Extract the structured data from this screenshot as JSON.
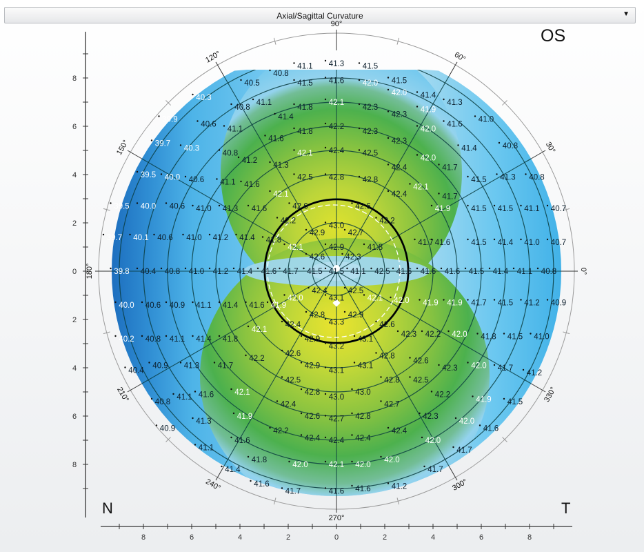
{
  "dropdown": {
    "selected": "Axial/Sagittal Curvature",
    "arrow": "▼"
  },
  "eye_label": "OS",
  "side_labels": {
    "left": "N",
    "right": "T"
  },
  "chart_data": {
    "type": "heatmap",
    "subtype": "polar corneal topography map",
    "title": "Axial/Sagittal Curvature",
    "eye": "OS",
    "units": "diopters (D)",
    "xlabel": "mm",
    "ylabel": "mm",
    "xlim": [
      -9.5,
      9.5
    ],
    "ylim": [
      -9.5,
      9.5
    ],
    "x_ticks": [
      8,
      6,
      4,
      2,
      0,
      2,
      4,
      6,
      8
    ],
    "y_ticks": [
      8,
      6,
      4,
      2,
      0,
      2,
      4,
      6,
      8
    ],
    "angle_labels": [
      "0°",
      "30°",
      "60°",
      "90°",
      "120°",
      "150°",
      "180°",
      "210°",
      "240°",
      "270°",
      "300°",
      "330°"
    ],
    "ring_radii_mm": [
      1,
      2,
      3,
      4,
      5,
      6,
      7,
      8,
      9
    ],
    "reference_circle_mm": 3,
    "color_scale": [
      {
        "value": 39.5,
        "color": "#1f72bf"
      },
      {
        "value": 40.3,
        "color": "#3fa4e0"
      },
      {
        "value": 41.0,
        "color": "#5cc0ec"
      },
      {
        "value": 41.5,
        "color": "#93d3ee"
      },
      {
        "value": 41.8,
        "color": "#6fbe9a"
      },
      {
        "value": 42.1,
        "color": "#45b04a"
      },
      {
        "value": 42.5,
        "color": "#8cc43c"
      },
      {
        "value": 43.0,
        "color": "#c9da2e"
      },
      {
        "value": 43.3,
        "color": "#e8e628"
      }
    ],
    "points": [
      {
        "x": -1.3,
        "y": 8.5,
        "v": 41.1
      },
      {
        "x": 0.0,
        "y": 8.6,
        "v": 41.3
      },
      {
        "x": 1.4,
        "y": 8.5,
        "v": 41.5
      },
      {
        "x": -2.3,
        "y": 8.2,
        "v": 40.8
      },
      {
        "x": 2.6,
        "y": 7.9,
        "v": 41.5
      },
      {
        "x": 3.8,
        "y": 7.3,
        "v": 41.4
      },
      {
        "x": -3.5,
        "y": 7.8,
        "v": 40.5
      },
      {
        "x": -1.3,
        "y": 7.8,
        "v": 41.5
      },
      {
        "x": 0.0,
        "y": 7.9,
        "v": 41.6
      },
      {
        "x": 1.4,
        "y": 7.8,
        "v": 42.0
      },
      {
        "x": -5.5,
        "y": 7.2,
        "v": 40.3
      },
      {
        "x": -3.0,
        "y": 7.0,
        "v": 41.1
      },
      {
        "x": 2.6,
        "y": 7.4,
        "v": 42.0
      },
      {
        "x": 4.9,
        "y": 7.0,
        "v": 41.3
      },
      {
        "x": -3.9,
        "y": 6.8,
        "v": 40.8
      },
      {
        "x": -1.3,
        "y": 6.8,
        "v": 41.8
      },
      {
        "x": 0.0,
        "y": 7.0,
        "v": 42.1
      },
      {
        "x": 1.4,
        "y": 6.8,
        "v": 42.3
      },
      {
        "x": 3.8,
        "y": 6.7,
        "v": 41.9
      },
      {
        "x": -6.9,
        "y": 6.3,
        "v": 39.9
      },
      {
        "x": -5.3,
        "y": 6.1,
        "v": 40.6
      },
      {
        "x": -2.1,
        "y": 6.4,
        "v": 41.4
      },
      {
        "x": 2.6,
        "y": 6.5,
        "v": 42.3
      },
      {
        "x": 4.9,
        "y": 6.1,
        "v": 41.6
      },
      {
        "x": 6.2,
        "y": 6.3,
        "v": 41.0
      },
      {
        "x": -4.2,
        "y": 5.9,
        "v": 41.1
      },
      {
        "x": -1.3,
        "y": 5.8,
        "v": 41.8
      },
      {
        "x": 0.0,
        "y": 6.0,
        "v": 42.2
      },
      {
        "x": 1.4,
        "y": 5.8,
        "v": 42.3
      },
      {
        "x": 3.8,
        "y": 5.9,
        "v": 42.0
      },
      {
        "x": -7.2,
        "y": 5.3,
        "v": 39.7
      },
      {
        "x": -6.0,
        "y": 5.1,
        "v": 40.3
      },
      {
        "x": -2.5,
        "y": 5.5,
        "v": 41.6
      },
      {
        "x": 2.6,
        "y": 5.4,
        "v": 42.3
      },
      {
        "x": 5.5,
        "y": 5.1,
        "v": 41.4
      },
      {
        "x": 7.2,
        "y": 5.2,
        "v": 40.8
      },
      {
        "x": -4.4,
        "y": 4.9,
        "v": 40.8
      },
      {
        "x": -1.3,
        "y": 4.9,
        "v": 42.1
      },
      {
        "x": 0.0,
        "y": 5.0,
        "v": 42.4
      },
      {
        "x": 1.4,
        "y": 4.9,
        "v": 42.5
      },
      {
        "x": 3.8,
        "y": 4.7,
        "v": 42.0
      },
      {
        "x": 4.7,
        "y": 4.3,
        "v": 41.7
      },
      {
        "x": -3.6,
        "y": 4.6,
        "v": 41.2
      },
      {
        "x": -2.3,
        "y": 4.4,
        "v": 41.3
      },
      {
        "x": 2.6,
        "y": 4.3,
        "v": 42.4
      },
      {
        "x": -7.8,
        "y": 4.0,
        "v": 39.5
      },
      {
        "x": -6.8,
        "y": 3.9,
        "v": 40.0
      },
      {
        "x": -5.8,
        "y": 3.8,
        "v": 40.6
      },
      {
        "x": -4.5,
        "y": 3.7,
        "v": 41.1
      },
      {
        "x": -3.5,
        "y": 3.6,
        "v": 41.6
      },
      {
        "x": -1.3,
        "y": 3.9,
        "v": 42.5
      },
      {
        "x": 0.0,
        "y": 3.9,
        "v": 42.8
      },
      {
        "x": 1.4,
        "y": 3.8,
        "v": 42.8
      },
      {
        "x": 5.9,
        "y": 3.8,
        "v": 41.5
      },
      {
        "x": 7.1,
        "y": 3.9,
        "v": 41.3
      },
      {
        "x": 8.3,
        "y": 3.9,
        "v": 40.8
      },
      {
        "x": -2.3,
        "y": 3.2,
        "v": 42.1
      },
      {
        "x": 3.5,
        "y": 3.5,
        "v": 42.1
      },
      {
        "x": 2.6,
        "y": 3.2,
        "v": 42.4
      },
      {
        "x": 4.7,
        "y": 3.1,
        "v": 41.7
      },
      {
        "x": -8.9,
        "y": 2.7,
        "v": 39.5
      },
      {
        "x": -7.8,
        "y": 2.7,
        "v": 40.0
      },
      {
        "x": -6.6,
        "y": 2.7,
        "v": 40.6
      },
      {
        "x": -5.5,
        "y": 2.6,
        "v": 41.0
      },
      {
        "x": -4.4,
        "y": 2.6,
        "v": 41.3
      },
      {
        "x": -3.2,
        "y": 2.6,
        "v": 41.6
      },
      {
        "x": -1.5,
        "y": 2.7,
        "v": 42.6
      },
      {
        "x": 1.1,
        "y": 2.7,
        "v": 42.6
      },
      {
        "x": 4.4,
        "y": 2.6,
        "v": 41.9
      },
      {
        "x": 5.9,
        "y": 2.6,
        "v": 41.5
      },
      {
        "x": 7.0,
        "y": 2.6,
        "v": 41.5
      },
      {
        "x": 8.1,
        "y": 2.6,
        "v": 41.1
      },
      {
        "x": 9.2,
        "y": 2.6,
        "v": 40.7
      },
      {
        "x": -2.0,
        "y": 2.1,
        "v": 42.2
      },
      {
        "x": 2.1,
        "y": 2.1,
        "v": 42.2
      },
      {
        "x": 0.0,
        "y": 1.9,
        "v": 43.0
      },
      {
        "x": -0.8,
        "y": 1.6,
        "v": 42.9
      },
      {
        "x": 0.8,
        "y": 1.6,
        "v": 42.7
      },
      {
        "x": -9.2,
        "y": 1.4,
        "v": 39.7
      },
      {
        "x": -8.1,
        "y": 1.4,
        "v": 40.1
      },
      {
        "x": -7.1,
        "y": 1.4,
        "v": 40.6
      },
      {
        "x": -5.9,
        "y": 1.4,
        "v": 41.0
      },
      {
        "x": -4.8,
        "y": 1.4,
        "v": 41.2
      },
      {
        "x": -3.7,
        "y": 1.4,
        "v": 41.4
      },
      {
        "x": -2.6,
        "y": 1.3,
        "v": 41.8
      },
      {
        "x": -1.7,
        "y": 1.0,
        "v": 42.1
      },
      {
        "x": 0.0,
        "y": 1.0,
        "v": 42.9
      },
      {
        "x": 1.6,
        "y": 1.0,
        "v": 41.8
      },
      {
        "x": 3.7,
        "y": 1.2,
        "v": 41.7
      },
      {
        "x": 4.4,
        "y": 1.2,
        "v": 41.6
      },
      {
        "x": 5.9,
        "y": 1.2,
        "v": 41.5
      },
      {
        "x": 7.0,
        "y": 1.2,
        "v": 41.4
      },
      {
        "x": 8.1,
        "y": 1.2,
        "v": 41.0
      },
      {
        "x": 9.2,
        "y": 1.2,
        "v": 40.7
      },
      {
        "x": -0.8,
        "y": 0.6,
        "v": 42.6
      },
      {
        "x": 0.7,
        "y": 0.6,
        "v": 42.3
      },
      {
        "x": -8.9,
        "y": 0.0,
        "v": 39.8
      },
      {
        "x": -7.8,
        "y": 0.0,
        "v": 40.4
      },
      {
        "x": -6.8,
        "y": 0.0,
        "v": 40.8
      },
      {
        "x": -5.8,
        "y": 0.0,
        "v": 41.0
      },
      {
        "x": -4.8,
        "y": 0.0,
        "v": 41.2
      },
      {
        "x": -3.8,
        "y": 0.0,
        "v": 41.4
      },
      {
        "x": -2.8,
        "y": 0.0,
        "v": 41.6
      },
      {
        "x": -1.9,
        "y": 0.0,
        "v": 41.7
      },
      {
        "x": -0.9,
        "y": 0.0,
        "v": 41.5
      },
      {
        "x": 0.0,
        "y": 0.0,
        "v": 41.5
      },
      {
        "x": 0.9,
        "y": 0.0,
        "v": 41.1
      },
      {
        "x": 1.9,
        "y": 0.0,
        "v": 42.5
      },
      {
        "x": 2.8,
        "y": 0.0,
        "v": 41.6
      },
      {
        "x": 3.8,
        "y": 0.0,
        "v": 41.6
      },
      {
        "x": 4.8,
        "y": 0.0,
        "v": 41.6
      },
      {
        "x": 5.8,
        "y": 0.0,
        "v": 41.5
      },
      {
        "x": 6.8,
        "y": 0.0,
        "v": 41.4
      },
      {
        "x": 7.8,
        "y": 0.0,
        "v": 41.1
      },
      {
        "x": 8.8,
        "y": 0.0,
        "v": 40.8
      },
      {
        "x": -0.7,
        "y": -0.8,
        "v": 42.4
      },
      {
        "x": 0.8,
        "y": -0.8,
        "v": 42.5
      },
      {
        "x": 0.0,
        "y": -1.1,
        "v": 43.1
      },
      {
        "x": -8.7,
        "y": -1.4,
        "v": 40.0
      },
      {
        "x": -7.6,
        "y": -1.4,
        "v": 40.6
      },
      {
        "x": -6.6,
        "y": -1.4,
        "v": 40.9
      },
      {
        "x": -5.5,
        "y": -1.4,
        "v": 41.1
      },
      {
        "x": -4.4,
        "y": -1.4,
        "v": 41.4
      },
      {
        "x": -3.3,
        "y": -1.4,
        "v": 41.6
      },
      {
        "x": -2.4,
        "y": -1.4,
        "v": 41.9
      },
      {
        "x": -1.7,
        "y": -1.1,
        "v": 42.0
      },
      {
        "x": 1.6,
        "y": -1.1,
        "v": 42.1
      },
      {
        "x": 2.7,
        "y": -1.2,
        "v": 42.0
      },
      {
        "x": 3.9,
        "y": -1.3,
        "v": 41.9
      },
      {
        "x": 4.9,
        "y": -1.3,
        "v": 41.9
      },
      {
        "x": 5.9,
        "y": -1.3,
        "v": 41.7
      },
      {
        "x": 7.0,
        "y": -1.3,
        "v": 41.5
      },
      {
        "x": 8.1,
        "y": -1.3,
        "v": 41.2
      },
      {
        "x": 9.2,
        "y": -1.3,
        "v": 40.9
      },
      {
        "x": -0.8,
        "y": -1.8,
        "v": 42.8
      },
      {
        "x": 0.8,
        "y": -1.8,
        "v": 42.9
      },
      {
        "x": 0.0,
        "y": -2.1,
        "v": 43.3
      },
      {
        "x": -1.8,
        "y": -2.2,
        "v": 42.4
      },
      {
        "x": 2.1,
        "y": -2.2,
        "v": 42.6
      },
      {
        "x": -8.7,
        "y": -2.8,
        "v": 40.2
      },
      {
        "x": -7.6,
        "y": -2.8,
        "v": 40.8
      },
      {
        "x": -6.6,
        "y": -2.8,
        "v": 41.1
      },
      {
        "x": -5.5,
        "y": -2.8,
        "v": 41.4
      },
      {
        "x": -4.4,
        "y": -2.8,
        "v": 41.8
      },
      {
        "x": -3.2,
        "y": -2.4,
        "v": 42.1
      },
      {
        "x": -1.0,
        "y": -2.8,
        "v": 42.9
      },
      {
        "x": 0.0,
        "y": -3.1,
        "v": 43.2
      },
      {
        "x": 1.2,
        "y": -2.8,
        "v": 43.1
      },
      {
        "x": 3.0,
        "y": -2.6,
        "v": 42.3
      },
      {
        "x": 4.0,
        "y": -2.6,
        "v": 42.2
      },
      {
        "x": 5.1,
        "y": -2.6,
        "v": 42.0
      },
      {
        "x": 6.3,
        "y": -2.7,
        "v": 41.8
      },
      {
        "x": 7.4,
        "y": -2.7,
        "v": 41.5
      },
      {
        "x": 8.5,
        "y": -2.7,
        "v": 41.0
      },
      {
        "x": -1.8,
        "y": -3.4,
        "v": 42.6
      },
      {
        "x": 2.1,
        "y": -3.5,
        "v": 42.8
      },
      {
        "x": -3.3,
        "y": -3.6,
        "v": 42.2
      },
      {
        "x": -4.6,
        "y": -3.9,
        "v": 41.7
      },
      {
        "x": -6.0,
        "y": -3.9,
        "v": 41.3
      },
      {
        "x": -7.3,
        "y": -3.9,
        "v": 40.9
      },
      {
        "x": -8.3,
        "y": -4.1,
        "v": 40.4
      },
      {
        "x": -1.0,
        "y": -3.9,
        "v": 42.9
      },
      {
        "x": 0.0,
        "y": -4.1,
        "v": 43.1
      },
      {
        "x": 1.2,
        "y": -3.9,
        "v": 43.1
      },
      {
        "x": 3.5,
        "y": -3.7,
        "v": 42.6
      },
      {
        "x": 4.7,
        "y": -4.0,
        "v": 42.3
      },
      {
        "x": 5.9,
        "y": -3.9,
        "v": 42.0
      },
      {
        "x": 7.0,
        "y": -4.0,
        "v": 41.7
      },
      {
        "x": 8.2,
        "y": -4.2,
        "v": 41.2
      },
      {
        "x": -1.8,
        "y": -4.5,
        "v": 42.5
      },
      {
        "x": 2.3,
        "y": -4.5,
        "v": 42.8
      },
      {
        "x": 3.5,
        "y": -4.5,
        "v": 42.5
      },
      {
        "x": -3.9,
        "y": -5.0,
        "v": 42.1
      },
      {
        "x": -5.4,
        "y": -5.1,
        "v": 41.6
      },
      {
        "x": -1.0,
        "y": -5.0,
        "v": 42.8
      },
      {
        "x": 0.0,
        "y": -5.2,
        "v": 43.0
      },
      {
        "x": 1.1,
        "y": -5.0,
        "v": 43.0
      },
      {
        "x": 4.4,
        "y": -5.1,
        "v": 42.2
      },
      {
        "x": 6.1,
        "y": -5.3,
        "v": 41.9
      },
      {
        "x": 7.4,
        "y": -5.4,
        "v": 41.5
      },
      {
        "x": -7.2,
        "y": -5.4,
        "v": 40.8
      },
      {
        "x": -6.3,
        "y": -5.2,
        "v": 41.1
      },
      {
        "x": -2.0,
        "y": -5.5,
        "v": 42.4
      },
      {
        "x": 2.3,
        "y": -5.5,
        "v": 42.7
      },
      {
        "x": -3.8,
        "y": -6.0,
        "v": 41.9
      },
      {
        "x": -1.0,
        "y": -6.0,
        "v": 42.6
      },
      {
        "x": 0.0,
        "y": -6.1,
        "v": 42.7
      },
      {
        "x": 1.1,
        "y": -6.0,
        "v": 42.8
      },
      {
        "x": 3.9,
        "y": -6.0,
        "v": 42.3
      },
      {
        "x": 5.4,
        "y": -6.2,
        "v": 42.0
      },
      {
        "x": -5.5,
        "y": -6.2,
        "v": 41.3
      },
      {
        "x": -7.0,
        "y": -6.5,
        "v": 40.9
      },
      {
        "x": 6.4,
        "y": -6.5,
        "v": 41.6
      },
      {
        "x": -2.3,
        "y": -6.6,
        "v": 42.2
      },
      {
        "x": -1.0,
        "y": -6.9,
        "v": 42.4
      },
      {
        "x": 0.0,
        "y": -7.0,
        "v": 42.4
      },
      {
        "x": 1.1,
        "y": -6.9,
        "v": 42.4
      },
      {
        "x": 2.6,
        "y": -6.6,
        "v": 42.4
      },
      {
        "x": 4.0,
        "y": -7.0,
        "v": 42.0
      },
      {
        "x": -5.4,
        "y": -7.3,
        "v": 41.1
      },
      {
        "x": -3.9,
        "y": -7.0,
        "v": 41.6
      },
      {
        "x": 5.3,
        "y": -7.4,
        "v": 41.7
      },
      {
        "x": -3.2,
        "y": -7.8,
        "v": 41.8
      },
      {
        "x": -1.5,
        "y": -8.0,
        "v": 42.0
      },
      {
        "x": 0.0,
        "y": -8.0,
        "v": 42.1
      },
      {
        "x": 1.1,
        "y": -8.0,
        "v": 42.0
      },
      {
        "x": 2.3,
        "y": -7.8,
        "v": 42.0
      },
      {
        "x": -4.3,
        "y": -8.2,
        "v": 41.4
      },
      {
        "x": 4.1,
        "y": -8.2,
        "v": 41.7
      },
      {
        "x": -3.1,
        "y": -8.8,
        "v": 41.6
      },
      {
        "x": -1.8,
        "y": -9.1,
        "v": 41.7
      },
      {
        "x": 0.0,
        "y": -9.1,
        "v": 41.6
      },
      {
        "x": 1.1,
        "y": -9.0,
        "v": 41.6
      },
      {
        "x": 2.6,
        "y": -8.9,
        "v": 41.2
      }
    ]
  }
}
